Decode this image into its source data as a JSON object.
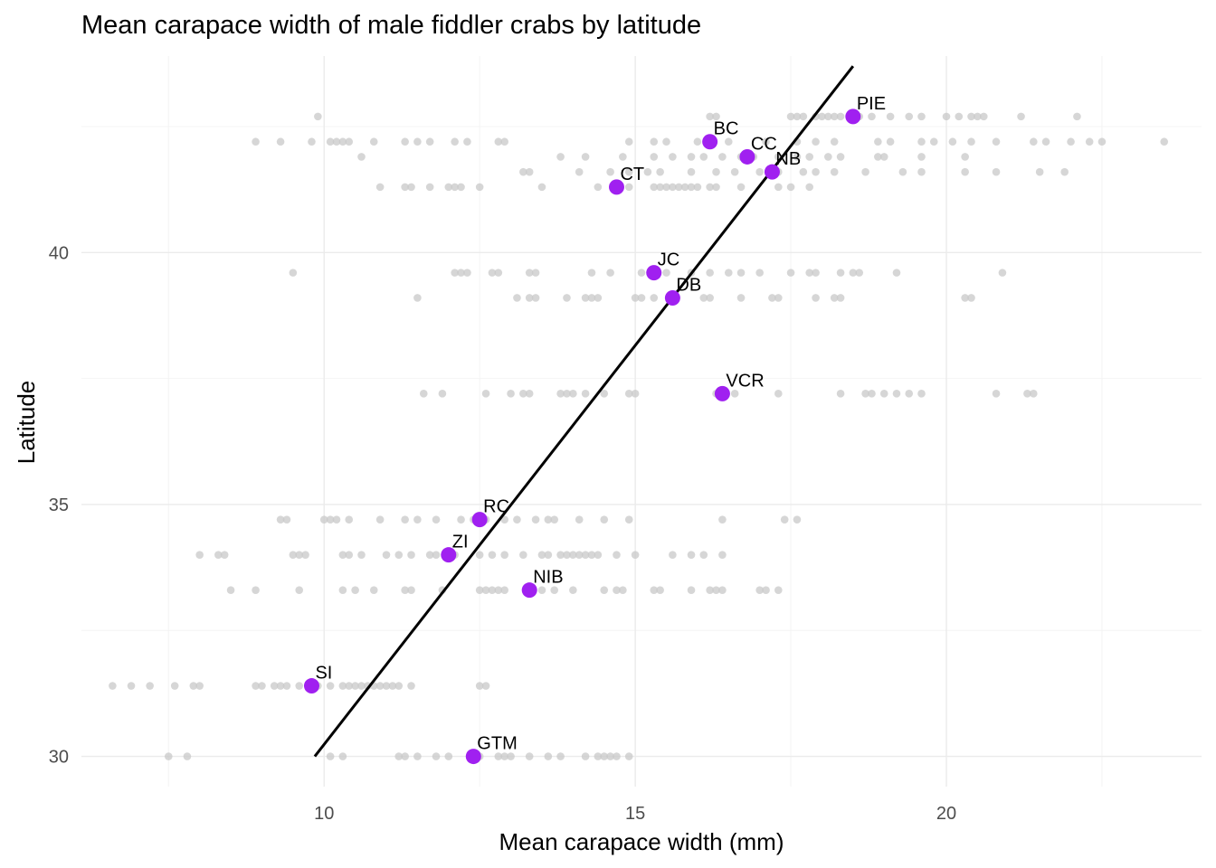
{
  "chart_data": {
    "type": "scatter",
    "title": "Mean carapace width of male fiddler crabs by latitude",
    "xlabel": "Mean carapace width (mm)",
    "ylabel": "Latitude",
    "xlim": [
      6.1,
      24.1
    ],
    "ylim": [
      29.4,
      43.9
    ],
    "x_ticks": [
      10,
      15,
      20
    ],
    "y_ticks": [
      30,
      35,
      40
    ],
    "grid": true,
    "colors": {
      "raw_points": "#c8c8c8",
      "site_means": "#a020f0",
      "fit_line": "#000000",
      "grid_major": "#ebebeb",
      "grid_minor": "#f4f4f4"
    },
    "fit_line": {
      "x": [
        9.85,
        18.5
      ],
      "y": [
        30.0,
        43.7
      ]
    },
    "site_means": [
      {
        "label": "PIE",
        "x": 18.5,
        "y": 42.7
      },
      {
        "label": "BC",
        "x": 16.2,
        "y": 42.2
      },
      {
        "label": "CC",
        "x": 16.8,
        "y": 41.9
      },
      {
        "label": "NB",
        "x": 17.2,
        "y": 41.6
      },
      {
        "label": "CT",
        "x": 14.7,
        "y": 41.3
      },
      {
        "label": "JC",
        "x": 15.3,
        "y": 39.6
      },
      {
        "label": "DB",
        "x": 15.6,
        "y": 39.1
      },
      {
        "label": "VCR",
        "x": 16.4,
        "y": 37.2
      },
      {
        "label": "RC",
        "x": 12.5,
        "y": 34.7
      },
      {
        "label": "ZI",
        "x": 12.0,
        "y": 34.0
      },
      {
        "label": "NIB",
        "x": 13.3,
        "y": 33.3
      },
      {
        "label": "SI",
        "x": 9.8,
        "y": 31.4
      },
      {
        "label": "GTM",
        "x": 12.4,
        "y": 30.0
      }
    ],
    "raw_points": [
      {
        "site": "PIE",
        "y": 42.7,
        "x": [
          9.9,
          16.2,
          16.3,
          17.5,
          17.6,
          17.7,
          17.9,
          18.0,
          18.1,
          18.2,
          18.3,
          18.6,
          18.8,
          19.1,
          19.4,
          19.6,
          20.0,
          20.2,
          20.4,
          20.5,
          20.6,
          21.2,
          22.1
        ]
      },
      {
        "site": "BC",
        "y": 42.2,
        "x": [
          8.9,
          9.3,
          9.8,
          10.1,
          10.2,
          10.3,
          10.4,
          10.8,
          11.3,
          11.5,
          11.7,
          12.1,
          12.3,
          12.8,
          12.9,
          14.9,
          15.3,
          15.5,
          16.0,
          16.5,
          17.1,
          17.6,
          17.9,
          18.2,
          18.9,
          19.1,
          19.6,
          19.8,
          20.1,
          20.4,
          20.8,
          21.4,
          21.6,
          22.0,
          22.3,
          22.5,
          23.5
        ]
      },
      {
        "site": "CC",
        "y": 41.9,
        "x": [
          10.6,
          13.8,
          14.2,
          14.8,
          15.3,
          15.6,
          15.9,
          16.1,
          16.4,
          16.7,
          16.9,
          17.3,
          17.6,
          17.8,
          18.1,
          18.3,
          18.9,
          19.0,
          19.6,
          20.3
        ]
      },
      {
        "site": "NB",
        "y": 41.6,
        "x": [
          13.2,
          13.3,
          14.1,
          14.6,
          14.9,
          15.2,
          15.4,
          15.9,
          16.3,
          16.6,
          17.0,
          17.3,
          17.7,
          17.9,
          18.2,
          18.7,
          19.3,
          19.6,
          20.3,
          20.8,
          21.5,
          21.9
        ]
      },
      {
        "site": "CT",
        "y": 41.3,
        "x": [
          10.9,
          11.3,
          11.4,
          11.7,
          12.0,
          12.1,
          12.2,
          12.5,
          13.5,
          14.4,
          14.9,
          15.3,
          15.4,
          15.5,
          15.6,
          15.7,
          15.8,
          15.9,
          16.0,
          16.2,
          16.3,
          16.7,
          17.3,
          17.5,
          17.8
        ]
      },
      {
        "site": "JC",
        "y": 39.6,
        "x": [
          9.5,
          12.1,
          12.2,
          12.3,
          12.7,
          12.8,
          13.3,
          13.4,
          14.3,
          14.6,
          15.1,
          15.5,
          15.9,
          16.2,
          16.5,
          16.7,
          17.0,
          17.5,
          17.8,
          17.9,
          18.3,
          18.5,
          18.6,
          19.2,
          20.9
        ]
      },
      {
        "site": "DB",
        "y": 39.1,
        "x": [
          11.5,
          13.1,
          13.3,
          13.4,
          13.9,
          14.2,
          14.3,
          14.4,
          15.0,
          15.1,
          15.3,
          15.6,
          16.1,
          16.2,
          16.7,
          17.2,
          17.3,
          17.9,
          18.2,
          18.3,
          20.3,
          20.4
        ]
      },
      {
        "site": "VCR",
        "y": 37.2,
        "x": [
          11.6,
          11.9,
          12.6,
          13.0,
          13.2,
          13.3,
          13.8,
          13.9,
          14.0,
          14.2,
          14.5,
          14.9,
          15.0,
          16.3,
          16.6,
          17.3,
          18.3,
          18.7,
          18.8,
          19.0,
          19.2,
          19.4,
          19.6,
          20.8,
          21.3,
          21.4
        ]
      },
      {
        "site": "RC",
        "y": 34.7,
        "x": [
          9.3,
          9.4,
          10.0,
          10.1,
          10.2,
          10.4,
          10.9,
          11.3,
          11.5,
          11.8,
          12.2,
          12.4,
          12.6,
          12.9,
          13.1,
          13.4,
          13.6,
          13.7,
          14.1,
          14.5,
          14.9,
          16.4,
          17.4,
          17.6
        ]
      },
      {
        "site": "ZI",
        "y": 34.0,
        "x": [
          8.0,
          8.3,
          8.4,
          9.5,
          9.6,
          9.7,
          10.3,
          10.4,
          10.6,
          11.0,
          11.2,
          11.4,
          11.7,
          11.8,
          12.1,
          12.5,
          12.7,
          12.9,
          13.2,
          13.5,
          13.6,
          13.8,
          13.9,
          14.0,
          14.1,
          14.2,
          14.3,
          14.4,
          14.7,
          15.0,
          15.6,
          15.9,
          16.1,
          16.4
        ]
      },
      {
        "site": "NIB",
        "y": 33.3,
        "x": [
          8.5,
          8.9,
          9.6,
          10.3,
          10.5,
          10.8,
          11.3,
          11.4,
          11.9,
          12.5,
          12.6,
          12.7,
          12.8,
          12.9,
          13.5,
          13.7,
          14.0,
          14.5,
          14.7,
          14.8,
          15.3,
          15.4,
          15.9,
          16.2,
          16.3,
          16.4,
          17.0,
          17.1,
          17.3
        ]
      },
      {
        "site": "SI",
        "y": 31.4,
        "x": [
          6.6,
          6.9,
          7.2,
          7.6,
          7.9,
          8.0,
          8.9,
          9.0,
          9.2,
          9.3,
          9.4,
          9.6,
          9.9,
          10.1,
          10.3,
          10.4,
          10.5,
          10.6,
          10.7,
          10.8,
          10.9,
          11.0,
          11.1,
          11.2,
          11.4,
          12.5,
          12.6
        ]
      },
      {
        "site": "GTM",
        "y": 30.0,
        "x": [
          7.5,
          7.8,
          10.1,
          10.3,
          11.2,
          11.3,
          11.5,
          11.8,
          12.0,
          12.5,
          12.8,
          12.9,
          13.0,
          13.3,
          13.6,
          13.8,
          14.2,
          14.4,
          14.5,
          14.6,
          14.7,
          14.9
        ]
      }
    ]
  }
}
